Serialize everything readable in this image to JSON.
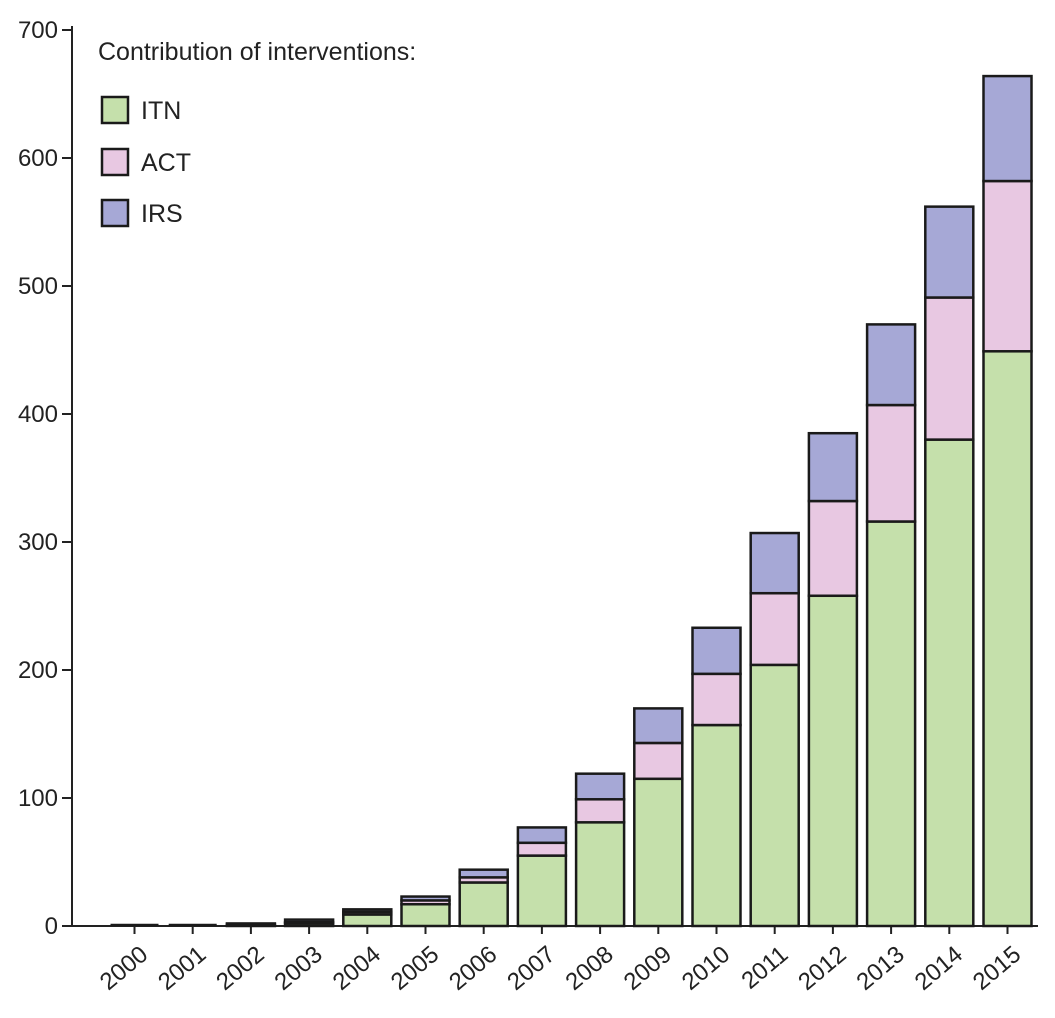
{
  "chart_data": {
    "type": "bar",
    "stacked": true,
    "categories": [
      "2000",
      "2001",
      "2002",
      "2003",
      "2004",
      "2005",
      "2006",
      "2007",
      "2008",
      "2009",
      "2010",
      "2011",
      "2012",
      "2013",
      "2014",
      "2015"
    ],
    "series": [
      {
        "name": "ITN",
        "color": "#c5e0ab",
        "values": [
          0,
          0,
          1,
          2,
          9,
          17,
          34,
          55,
          81,
          115,
          157,
          204,
          258,
          316,
          380,
          449
        ]
      },
      {
        "name": "ACT",
        "color": "#e8c8e2",
        "values": [
          0,
          0,
          0,
          1,
          2,
          3,
          4,
          10,
          18,
          28,
          40,
          56,
          74,
          91,
          111,
          133
        ]
      },
      {
        "name": "IRS",
        "color": "#a6a8d6",
        "values": [
          0,
          0,
          1,
          2,
          2,
          3,
          6,
          12,
          20,
          27,
          36,
          47,
          53,
          63,
          71,
          82
        ]
      }
    ],
    "legend_title": "Contribution of interventions:",
    "legend_position": "top-left",
    "y_ticks": [
      "0",
      "100",
      "200",
      "300",
      "400",
      "500",
      "600",
      "700"
    ],
    "ylim": [
      0,
      700
    ],
    "xlabel": "",
    "ylabel": "",
    "title": "",
    "grid": false
  }
}
